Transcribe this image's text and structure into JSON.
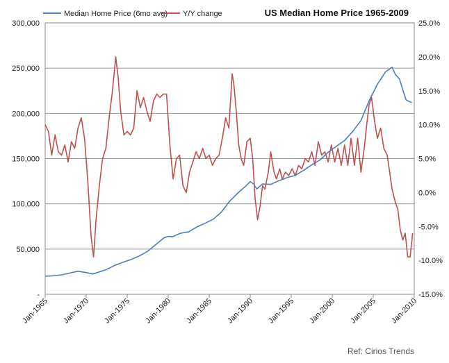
{
  "chart_data": {
    "type": "line",
    "title": "US Median Home Price 1965-2009",
    "xlabel": "",
    "ylabel": "",
    "y_left": {
      "range": [
        0,
        300000
      ],
      "ticks": [
        {
          "value": 0,
          "label": "-"
        },
        {
          "value": 50000,
          "label": "50,000"
        },
        {
          "value": 100000,
          "label": "100,000"
        },
        {
          "value": 150000,
          "label": "150,000"
        },
        {
          "value": 200000,
          "label": "200,000"
        },
        {
          "value": 250000,
          "label": "250,000"
        },
        {
          "value": 300000,
          "label": "300,000"
        }
      ]
    },
    "y_right": {
      "range": [
        -15,
        25
      ],
      "ticks": [
        {
          "value": -15,
          "label": "-15.0%"
        },
        {
          "value": -10,
          "label": "-10.0%"
        },
        {
          "value": -5,
          "label": "-5.0%"
        },
        {
          "value": 0,
          "label": "0.0%"
        },
        {
          "value": 5,
          "label": "5.0%"
        },
        {
          "value": 10,
          "label": "10.0%"
        },
        {
          "value": 15,
          "label": "15.0%"
        },
        {
          "value": 20,
          "label": "20.0%"
        },
        {
          "value": 25,
          "label": "25.0%"
        }
      ]
    },
    "x_range": [
      1965,
      2010
    ],
    "x_ticks": [
      {
        "value": 1965,
        "label": "Jan-1965"
      },
      {
        "value": 1970,
        "label": "Jan-1970"
      },
      {
        "value": 1975,
        "label": "Jan-1975"
      },
      {
        "value": 1980,
        "label": "Jan-1980"
      },
      {
        "value": 1985,
        "label": "Jan-1985"
      },
      {
        "value": 1990,
        "label": "Jan-1990"
      },
      {
        "value": 1995,
        "label": "Jan-1995"
      },
      {
        "value": 2000,
        "label": "Jan-2000"
      },
      {
        "value": 2005,
        "label": "Jan-2005"
      },
      {
        "value": 2010,
        "label": "Jan-2010"
      }
    ],
    "grid": true,
    "legend_position": "top-left",
    "series": [
      {
        "name": "Median Home Price (6mo avg)",
        "axis": "left",
        "color": "#4a7ebb",
        "points": [
          [
            1965.0,
            20000
          ],
          [
            1966.0,
            20500
          ],
          [
            1967.0,
            21500
          ],
          [
            1968.0,
            23500
          ],
          [
            1969.0,
            25500
          ],
          [
            1970.0,
            24000
          ],
          [
            1970.8,
            22500
          ],
          [
            1971.5,
            24500
          ],
          [
            1972.5,
            27500
          ],
          [
            1973.5,
            32000
          ],
          [
            1974.5,
            35500
          ],
          [
            1975.5,
            38500
          ],
          [
            1976.5,
            42500
          ],
          [
            1977.5,
            47500
          ],
          [
            1978.5,
            55000
          ],
          [
            1979.5,
            62500
          ],
          [
            1980.0,
            64000
          ],
          [
            1980.5,
            63500
          ],
          [
            1981.5,
            67500
          ],
          [
            1982.5,
            69000
          ],
          [
            1983.5,
            74500
          ],
          [
            1984.5,
            78500
          ],
          [
            1985.5,
            83000
          ],
          [
            1986.5,
            91000
          ],
          [
            1987.5,
            103000
          ],
          [
            1988.5,
            112000
          ],
          [
            1989.5,
            120000
          ],
          [
            1990.0,
            124500
          ],
          [
            1990.4,
            122000
          ],
          [
            1990.8,
            116500
          ],
          [
            1991.5,
            122000
          ],
          [
            1992.5,
            121500
          ],
          [
            1993.5,
            125500
          ],
          [
            1994.5,
            129000
          ],
          [
            1995.5,
            131500
          ],
          [
            1996.5,
            137000
          ],
          [
            1997.5,
            143000
          ],
          [
            1998.5,
            148500
          ],
          [
            1999.5,
            157000
          ],
          [
            2000.5,
            163500
          ],
          [
            2001.5,
            170000
          ],
          [
            2002.5,
            180000
          ],
          [
            2003.5,
            192000
          ],
          [
            2004.5,
            214000
          ],
          [
            2005.5,
            232000
          ],
          [
            2006.5,
            246000
          ],
          [
            2007.0,
            249000
          ],
          [
            2007.3,
            251000
          ],
          [
            2007.7,
            243000
          ],
          [
            2008.2,
            238000
          ],
          [
            2008.6,
            226000
          ],
          [
            2009.0,
            215000
          ],
          [
            2009.4,
            213000
          ],
          [
            2009.7,
            212000
          ]
        ]
      },
      {
        "name": "Y/Y change",
        "axis": "right",
        "color": "#c0504d",
        "points": [
          [
            1965.0,
            10.0
          ],
          [
            1965.4,
            9.0
          ],
          [
            1965.8,
            5.5
          ],
          [
            1966.2,
            8.5
          ],
          [
            1966.6,
            6.0
          ],
          [
            1967.0,
            5.5
          ],
          [
            1967.4,
            7.0
          ],
          [
            1967.8,
            4.5
          ],
          [
            1968.2,
            7.5
          ],
          [
            1968.6,
            6.5
          ],
          [
            1969.0,
            9.5
          ],
          [
            1969.4,
            11.0
          ],
          [
            1969.8,
            8.0
          ],
          [
            1970.2,
            1.5
          ],
          [
            1970.6,
            -6.5
          ],
          [
            1970.9,
            -9.5
          ],
          [
            1971.2,
            -4.0
          ],
          [
            1971.6,
            1.0
          ],
          [
            1972.0,
            5.0
          ],
          [
            1972.4,
            6.5
          ],
          [
            1972.8,
            11.0
          ],
          [
            1973.2,
            15.0
          ],
          [
            1973.6,
            20.0
          ],
          [
            1973.9,
            17.0
          ],
          [
            1974.2,
            12.0
          ],
          [
            1974.6,
            8.5
          ],
          [
            1975.0,
            9.0
          ],
          [
            1975.4,
            8.5
          ],
          [
            1975.8,
            9.5
          ],
          [
            1976.2,
            15.0
          ],
          [
            1976.6,
            12.5
          ],
          [
            1977.0,
            14.0
          ],
          [
            1977.4,
            12.0
          ],
          [
            1977.8,
            10.5
          ],
          [
            1978.2,
            13.5
          ],
          [
            1978.6,
            14.5
          ],
          [
            1979.0,
            14.0
          ],
          [
            1979.4,
            14.5
          ],
          [
            1979.8,
            14.5
          ],
          [
            1980.2,
            7.0
          ],
          [
            1980.6,
            2.0
          ],
          [
            1981.0,
            5.0
          ],
          [
            1981.4,
            5.5
          ],
          [
            1981.8,
            1.0
          ],
          [
            1982.2,
            0.0
          ],
          [
            1982.6,
            3.0
          ],
          [
            1983.0,
            4.5
          ],
          [
            1983.4,
            6.0
          ],
          [
            1983.8,
            5.0
          ],
          [
            1984.2,
            6.5
          ],
          [
            1984.6,
            5.0
          ],
          [
            1985.0,
            5.5
          ],
          [
            1985.4,
            4.0
          ],
          [
            1985.8,
            5.0
          ],
          [
            1986.2,
            5.5
          ],
          [
            1986.6,
            8.0
          ],
          [
            1987.0,
            11.0
          ],
          [
            1987.4,
            9.5
          ],
          [
            1987.8,
            17.5
          ],
          [
            1988.0,
            16.0
          ],
          [
            1988.3,
            12.0
          ],
          [
            1988.6,
            7.0
          ],
          [
            1988.9,
            5.0
          ],
          [
            1989.2,
            4.0
          ],
          [
            1989.6,
            7.5
          ],
          [
            1990.0,
            8.0
          ],
          [
            1990.3,
            5.0
          ],
          [
            1990.6,
            -1.0
          ],
          [
            1990.9,
            -4.0
          ],
          [
            1991.2,
            -2.0
          ],
          [
            1991.5,
            1.0
          ],
          [
            1991.8,
            0.5
          ],
          [
            1992.2,
            3.0
          ],
          [
            1992.5,
            6.0
          ],
          [
            1992.9,
            3.0
          ],
          [
            1993.2,
            2.0
          ],
          [
            1993.6,
            3.5
          ],
          [
            1993.9,
            2.0
          ],
          [
            1994.3,
            3.0
          ],
          [
            1994.7,
            2.5
          ],
          [
            1995.1,
            3.5
          ],
          [
            1995.5,
            2.5
          ],
          [
            1995.9,
            4.0
          ],
          [
            1996.3,
            3.5
          ],
          [
            1996.7,
            5.0
          ],
          [
            1997.1,
            4.5
          ],
          [
            1997.5,
            6.0
          ],
          [
            1997.9,
            4.0
          ],
          [
            1998.3,
            7.5
          ],
          [
            1998.7,
            5.5
          ],
          [
            1999.1,
            6.0
          ],
          [
            1999.5,
            4.5
          ],
          [
            1999.9,
            7.0
          ],
          [
            2000.3,
            4.5
          ],
          [
            2000.7,
            6.5
          ],
          [
            2001.1,
            4.0
          ],
          [
            2001.5,
            7.0
          ],
          [
            2001.9,
            4.0
          ],
          [
            2002.3,
            8.0
          ],
          [
            2002.7,
            4.0
          ],
          [
            2003.1,
            8.0
          ],
          [
            2003.5,
            3.0
          ],
          [
            2003.9,
            6.5
          ],
          [
            2004.2,
            10.0
          ],
          [
            2004.5,
            13.0
          ],
          [
            2004.8,
            14.0
          ],
          [
            2005.1,
            11.0
          ],
          [
            2005.5,
            8.0
          ],
          [
            2005.9,
            9.5
          ],
          [
            2006.3,
            6.5
          ],
          [
            2006.7,
            5.5
          ],
          [
            2007.0,
            3.0
          ],
          [
            2007.3,
            0.5
          ],
          [
            2007.7,
            -1.5
          ],
          [
            2008.0,
            -2.5
          ],
          [
            2008.3,
            -5.5
          ],
          [
            2008.6,
            -7.0
          ],
          [
            2008.9,
            -6.0
          ],
          [
            2009.2,
            -9.5
          ],
          [
            2009.5,
            -9.5
          ],
          [
            2009.8,
            -6.0
          ]
        ]
      }
    ]
  },
  "ref_text": "Ref: Cirios Trends"
}
